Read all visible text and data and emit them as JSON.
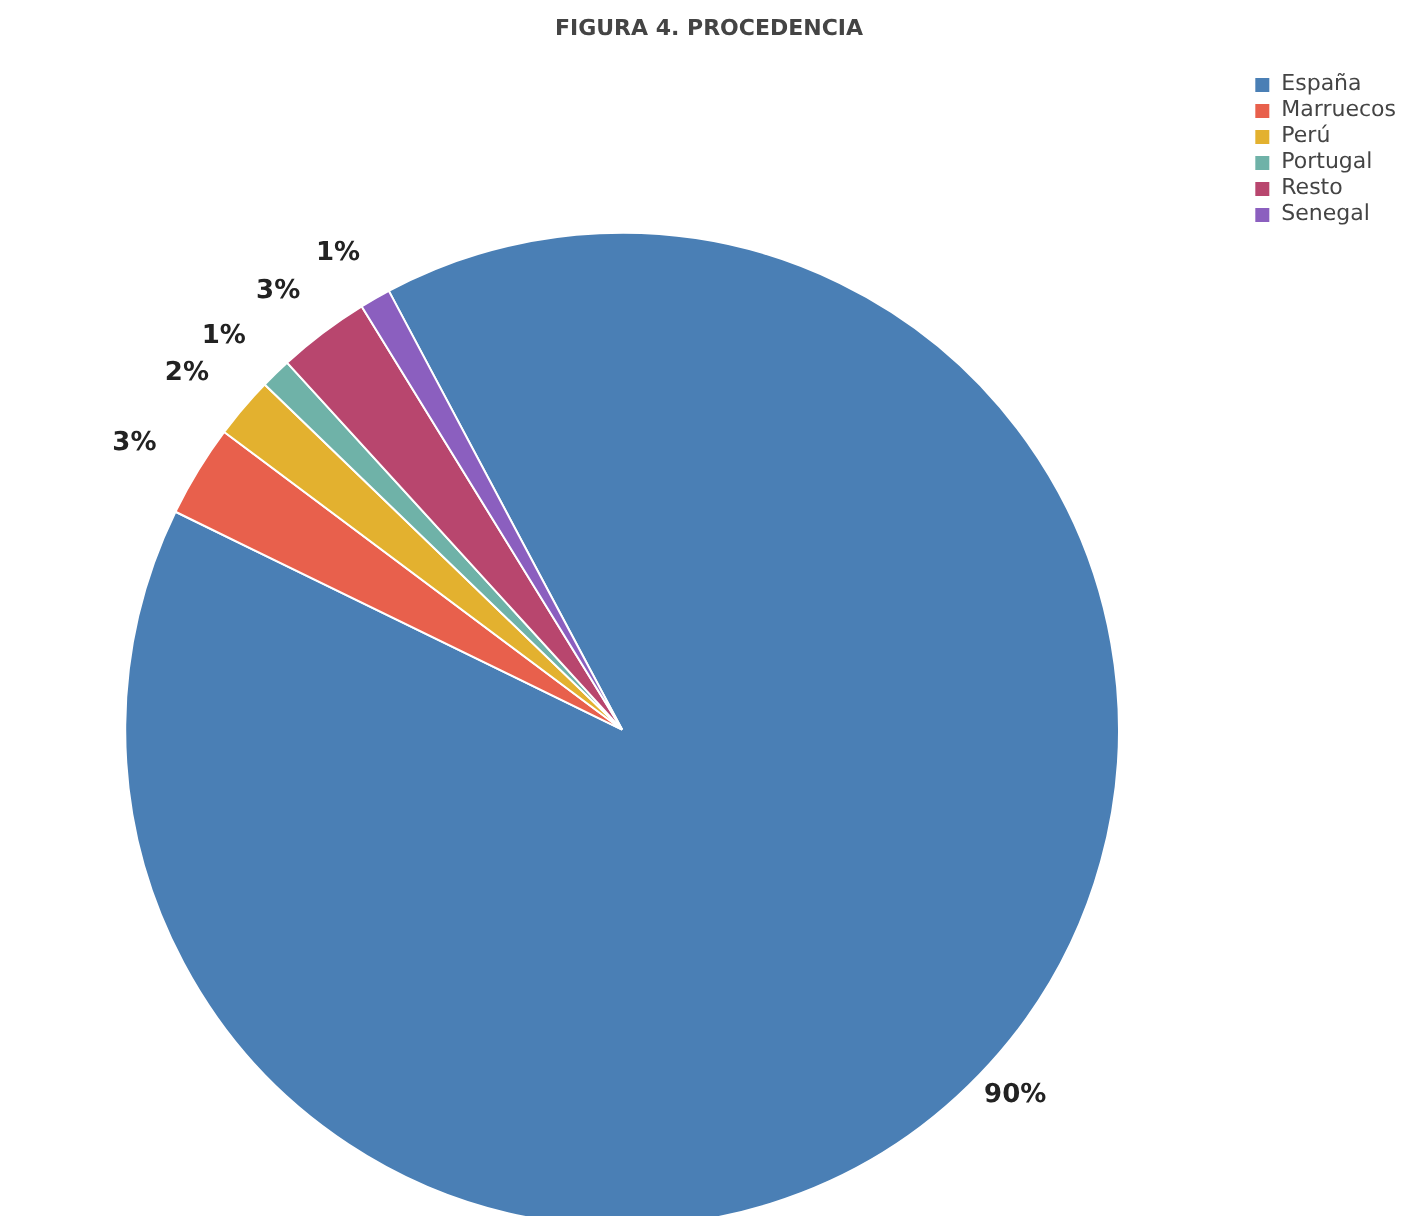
{
  "chart_data": {
    "type": "pie",
    "title": "FIGURA 4. PROCEDENCIA",
    "categories": [
      "España",
      "Marruecos",
      "Perú",
      "Portugal",
      "Resto",
      "Senegal"
    ],
    "values": [
      90,
      3,
      2,
      1,
      3,
      1
    ],
    "value_labels": [
      "90%",
      "3%",
      "2%",
      "1%",
      "3%",
      "1%"
    ],
    "colors": [
      "#4a7fb5",
      "#e8604c",
      "#e3b12f",
      "#6fb2a8",
      "#b8466e",
      "#8b5fbf"
    ],
    "legend": "top right"
  }
}
